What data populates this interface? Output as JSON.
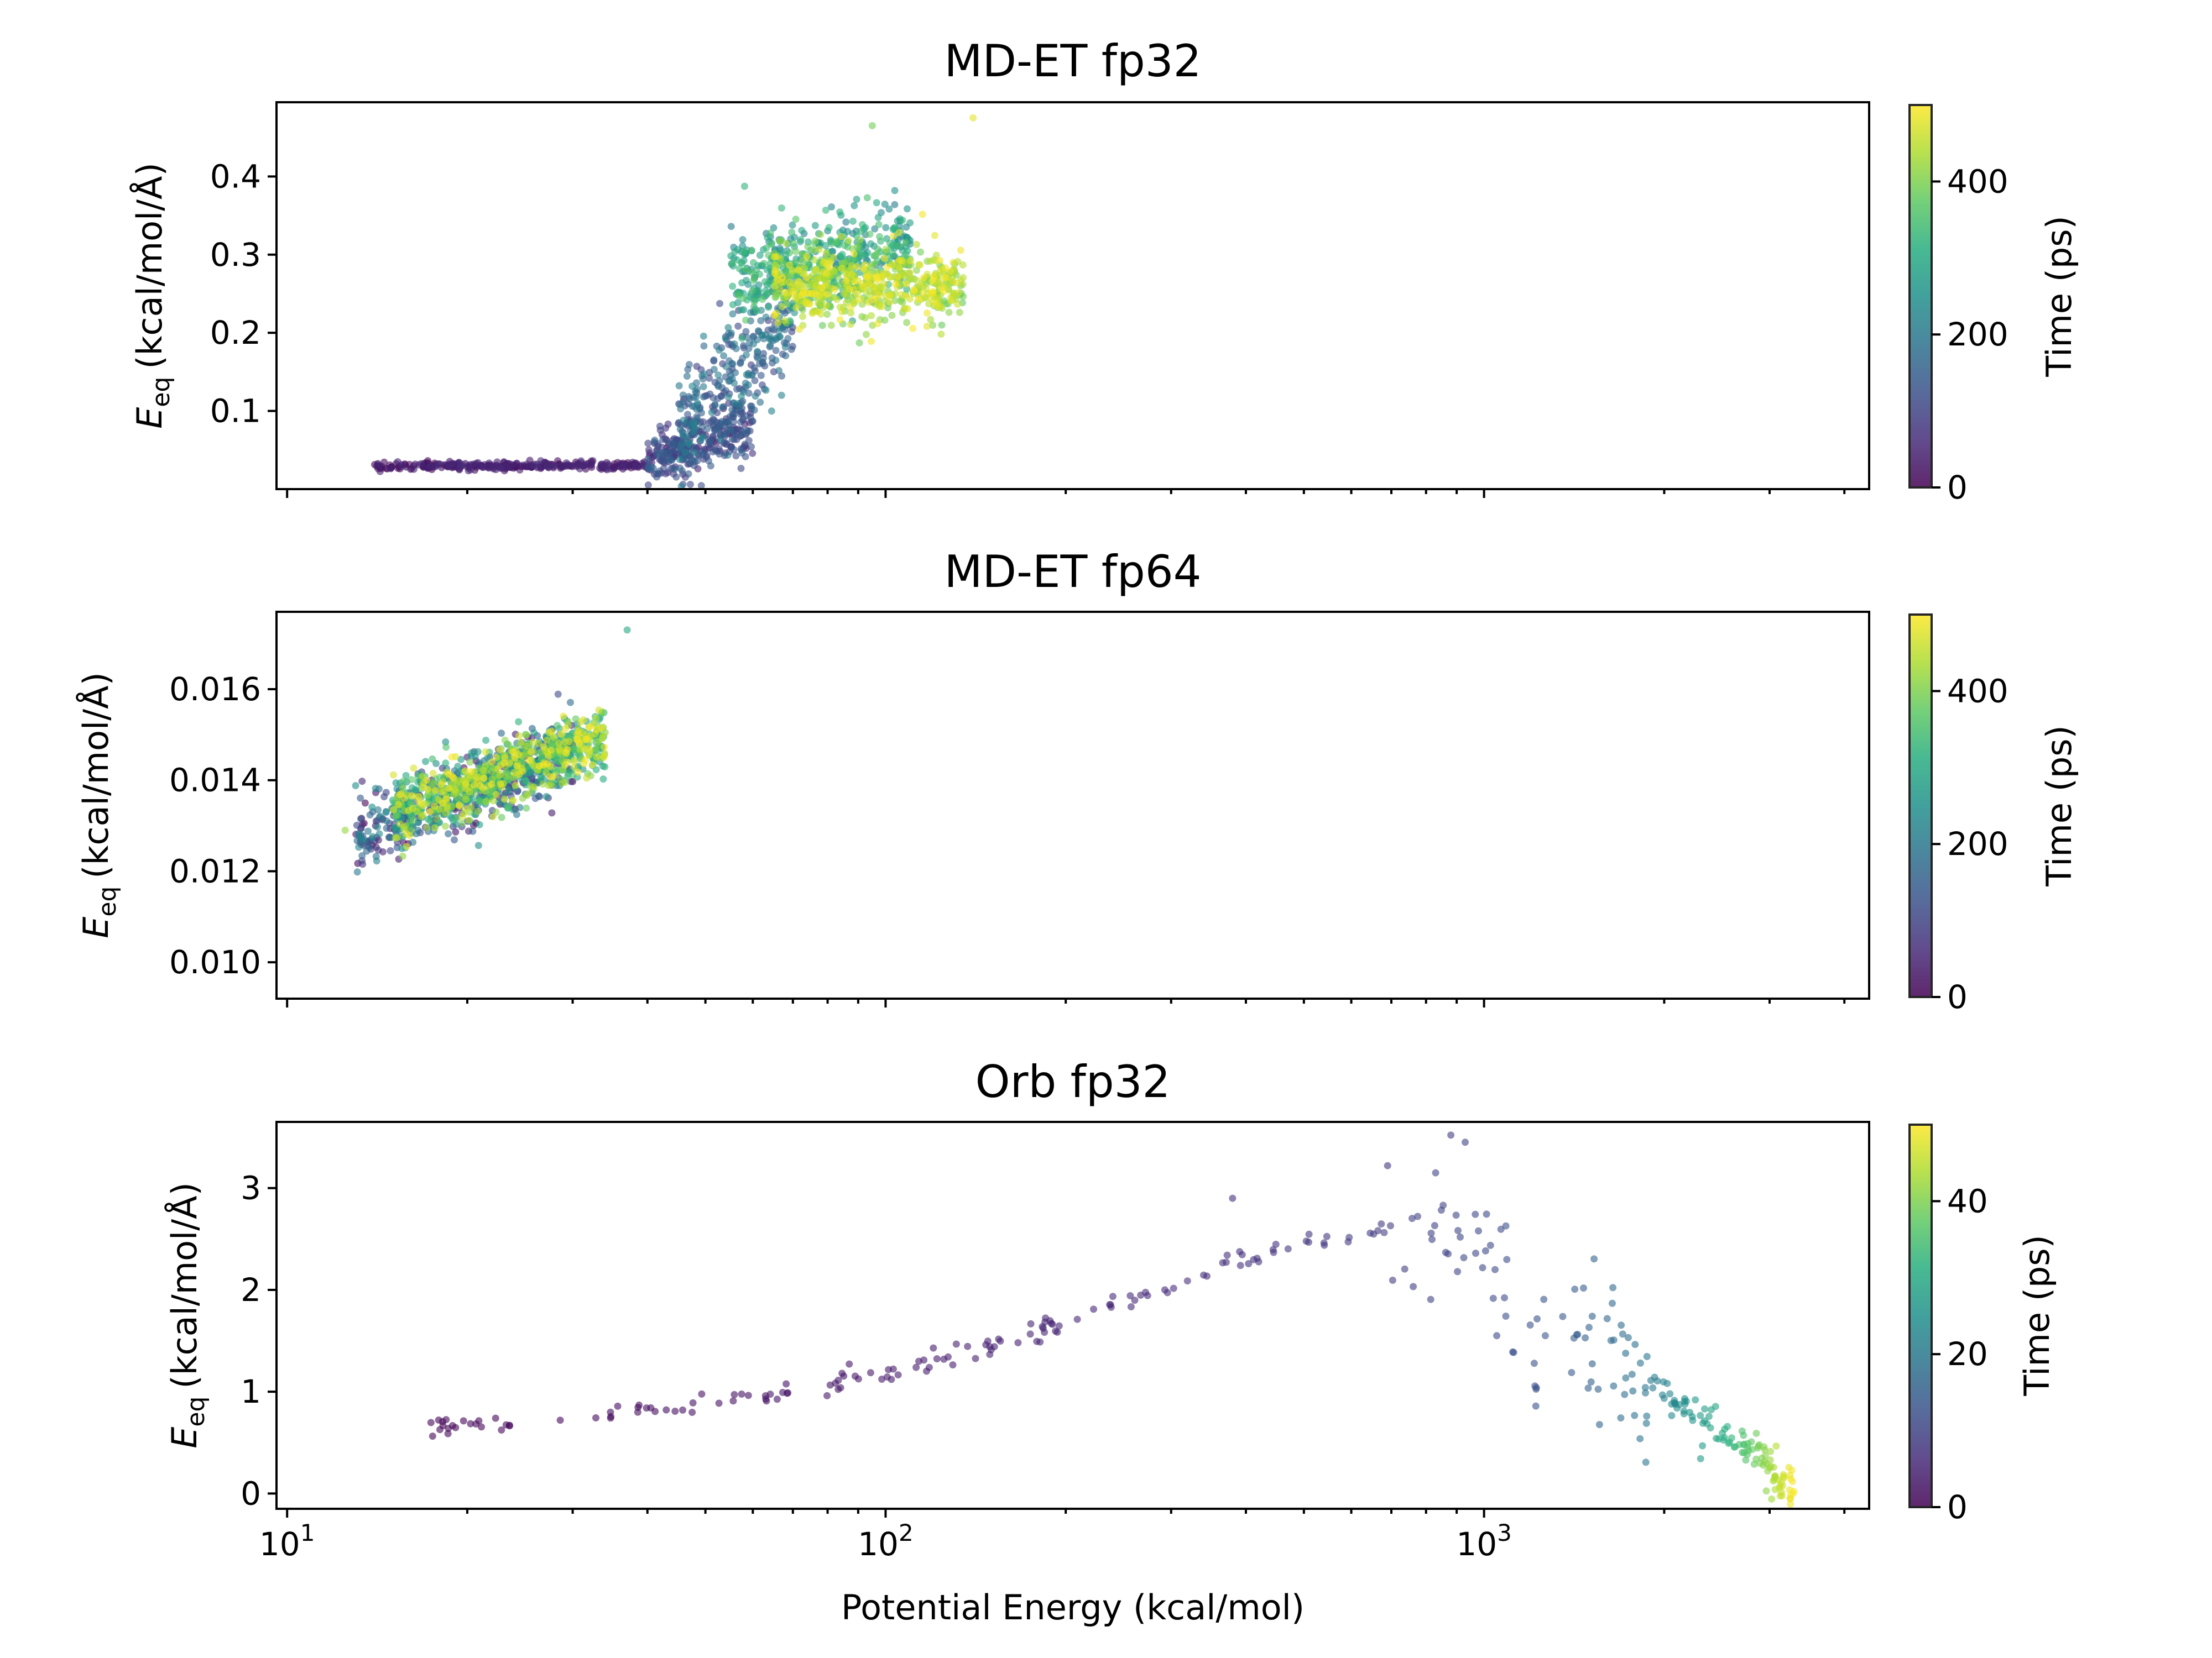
{
  "chart_data": [
    {
      "type": "scatter",
      "title": "MD-ET fp32",
      "ylabel_main": "E",
      "ylabel_sub": "eq",
      "ylabel_unit": "(kcal/mol/Å)",
      "xscale": "log",
      "xlim": [
        9.6,
        4400
      ],
      "ylim": [
        0.0,
        0.495
      ],
      "yticks": [
        {
          "v": 0.1,
          "label": "0.1"
        },
        {
          "v": 0.2,
          "label": "0.2"
        },
        {
          "v": 0.3,
          "label": "0.3"
        },
        {
          "v": 0.4,
          "label": "0.4"
        }
      ],
      "x_ticklabels_visible": false,
      "colorbar": {
        "label": "Time (ps)",
        "range": [
          0,
          500
        ],
        "ticks": [
          {
            "v": 0,
            "label": "0"
          },
          {
            "v": 200,
            "label": "200"
          },
          {
            "v": 400,
            "label": "400"
          }
        ]
      },
      "point_groups": [
        {
          "x_range": [
            14,
            40
          ],
          "y_center": 0.03,
          "y_spread": 0.004,
          "t_range": [
            0,
            60
          ],
          "count": 300,
          "corr": 0.15
        },
        {
          "x_range": [
            40,
            60
          ],
          "y_center": 0.06,
          "y_spread": 0.03,
          "t_range": [
            40,
            160
          ],
          "count": 300,
          "corr": 0.5
        },
        {
          "x_range": [
            45,
            70
          ],
          "y_center": 0.15,
          "y_spread": 0.06,
          "t_range": [
            90,
            230
          ],
          "count": 300,
          "corr": 0.8
        },
        {
          "x_range": [
            55,
            110
          ],
          "y_center": 0.29,
          "y_spread": 0.05,
          "t_range": [
            200,
            370
          ],
          "count": 450,
          "corr": 0.3
        },
        {
          "x_range": [
            65,
            135
          ],
          "y_center": 0.26,
          "y_spread": 0.04,
          "t_range": [
            380,
            500
          ],
          "count": 550,
          "corr": 0.0
        }
      ],
      "extreme_points": [
        {
          "x": 140,
          "y": 0.475,
          "t": 480
        },
        {
          "x": 95,
          "y": 0.465,
          "t": 390
        }
      ]
    },
    {
      "type": "scatter",
      "title": "MD-ET fp64",
      "ylabel_main": "E",
      "ylabel_sub": "eq",
      "ylabel_unit": "(kcal/mol/Å)",
      "xscale": "log",
      "xlim": [
        9.6,
        4400
      ],
      "ylim": [
        0.0092,
        0.0177
      ],
      "yticks": [
        {
          "v": 0.01,
          "label": "0.010"
        },
        {
          "v": 0.012,
          "label": "0.012"
        },
        {
          "v": 0.014,
          "label": "0.014"
        },
        {
          "v": 0.016,
          "label": "0.016"
        }
      ],
      "x_ticklabels_visible": false,
      "colorbar": {
        "label": "Time (ps)",
        "range": [
          0,
          500
        ],
        "ticks": [
          {
            "v": 0,
            "label": "0"
          },
          {
            "v": 200,
            "label": "200"
          },
          {
            "v": 400,
            "label": "400"
          }
        ]
      },
      "point_groups": [
        {
          "x_range": [
            13,
            30
          ],
          "y_center": 0.0137,
          "y_spread": 0.0007,
          "t_range": [
            0,
            250
          ],
          "count": 450,
          "corr": 0.85
        },
        {
          "x_range": [
            15,
            34
          ],
          "y_center": 0.0141,
          "y_spread": 0.0006,
          "t_range": [
            250,
            500
          ],
          "count": 800,
          "corr": 0.85
        }
      ],
      "extreme_points": [
        {
          "x": 37,
          "y": 0.0173,
          "t": 300
        },
        {
          "x": 12.5,
          "y": 0.0129,
          "t": 420
        }
      ]
    },
    {
      "type": "scatter",
      "title": "Orb fp32",
      "ylabel_main": "E",
      "ylabel_sub": "eq",
      "ylabel_unit": "(kcal/mol/Å)",
      "xlabel": "Potential Energy (kcal/mol)",
      "xscale": "log",
      "xlim": [
        9.6,
        4400
      ],
      "ylim": [
        -0.15,
        3.65
      ],
      "yticks": [
        {
          "v": 0,
          "label": "0"
        },
        {
          "v": 1,
          "label": "1"
        },
        {
          "v": 2,
          "label": "2"
        },
        {
          "v": 3,
          "label": "3"
        }
      ],
      "xticks": [
        {
          "v": 10,
          "base": "10",
          "exp": "1"
        },
        {
          "v": 100,
          "base": "10",
          "exp": "2"
        },
        {
          "v": 1000,
          "base": "10",
          "exp": "3"
        }
      ],
      "x_ticklabels_visible": true,
      "colorbar": {
        "label": "Time (ps)",
        "range": [
          0,
          50
        ],
        "ticks": [
          {
            "v": 0,
            "label": "0"
          },
          {
            "v": 20,
            "label": "20"
          },
          {
            "v": 40,
            "label": "40"
          }
        ]
      },
      "trend_points": [
        {
          "x": 17,
          "y": 0.62,
          "t": 0.5
        },
        {
          "x": 30,
          "y": 0.72,
          "t": 1.2
        },
        {
          "x": 60,
          "y": 0.95,
          "t": 2.5
        },
        {
          "x": 100,
          "y": 1.2,
          "t": 3.5
        },
        {
          "x": 150,
          "y": 1.45,
          "t": 4.5
        },
        {
          "x": 230,
          "y": 1.8,
          "t": 5.5
        },
        {
          "x": 400,
          "y": 2.3,
          "t": 7
        },
        {
          "x": 700,
          "y": 2.6,
          "t": 9
        },
        {
          "x": 1000,
          "y": 2.3,
          "t": 11
        },
        {
          "x": 1400,
          "y": 1.5,
          "t": 14
        },
        {
          "x": 1900,
          "y": 1.05,
          "t": 20
        },
        {
          "x": 2500,
          "y": 0.6,
          "t": 30
        },
        {
          "x": 3000,
          "y": 0.25,
          "t": 42
        },
        {
          "x": 3300,
          "y": 0.02,
          "t": 50
        }
      ],
      "outlier_points": [
        {
          "x": 880,
          "y": 3.52,
          "t": 9
        },
        {
          "x": 690,
          "y": 3.22,
          "t": 8
        },
        {
          "x": 830,
          "y": 3.15,
          "t": 10
        },
        {
          "x": 380,
          "y": 2.9,
          "t": 7
        },
        {
          "x": 930,
          "y": 3.45,
          "t": 10
        },
        {
          "x": 1050,
          "y": 1.55,
          "t": 11
        }
      ]
    }
  ]
}
